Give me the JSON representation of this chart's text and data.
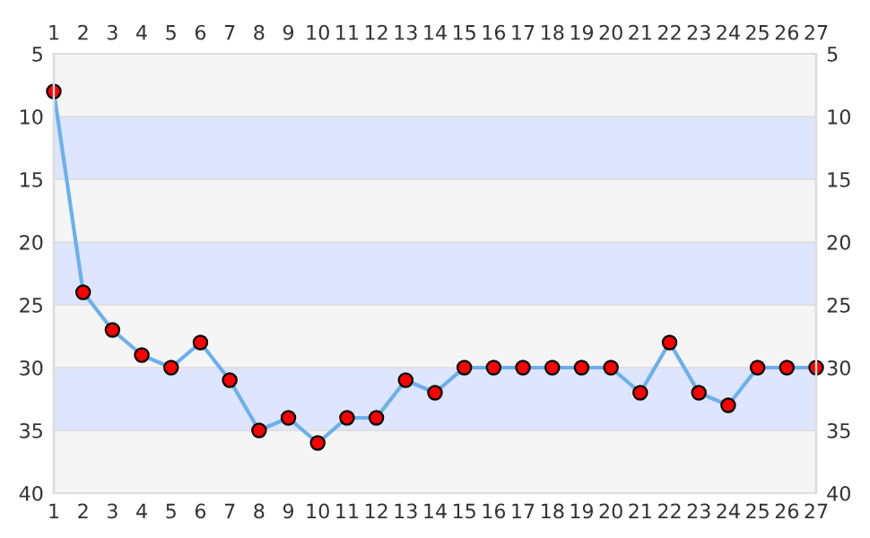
{
  "chart_data": {
    "type": "line",
    "x": [
      1,
      2,
      3,
      4,
      5,
      6,
      7,
      8,
      9,
      10,
      11,
      12,
      13,
      14,
      15,
      16,
      17,
      18,
      19,
      20,
      21,
      22,
      23,
      24,
      25,
      26,
      27
    ],
    "series": [
      {
        "color": "#6ab0f0",
        "colors": [
          "#ff0000",
          "#ff0000",
          "#ff0000",
          "#ff0000",
          "#ff0000",
          "#ff0000",
          "#ff0000",
          "#ff0000",
          "#ff0000",
          "#ff0000",
          "#ff0000",
          "#ff0000",
          "#ff0000",
          "#ff0000",
          "#ff0000",
          "#ff0000",
          "#ff0000",
          "#ff0000",
          "#ff0000",
          "#ff0000",
          "#ff0000",
          "#ff0000",
          "#ff0000",
          "#ff0000",
          "#ff0000",
          "#ff0000",
          "#ff0000"
        ],
        "values": [
          8,
          24,
          27,
          29,
          30,
          28,
          31,
          35,
          34,
          36,
          34,
          34,
          31,
          32,
          30,
          30,
          30,
          30,
          30,
          30,
          32,
          28,
          32,
          33,
          30,
          30,
          30
        ]
      }
    ],
    "marker": "circle",
    "line_style": "solid",
    "xlim": [
      1,
      27
    ],
    "xticks": [
      1,
      2,
      3,
      4,
      5,
      6,
      7,
      8,
      9,
      10,
      11,
      12,
      13,
      14,
      15,
      16,
      17,
      18,
      19,
      20,
      21,
      22,
      23,
      24,
      25,
      26,
      27
    ],
    "x2lim": [
      1,
      27
    ],
    "x2ticks": [
      1,
      2,
      3,
      4,
      5,
      6,
      7,
      8,
      9,
      10,
      11,
      12,
      13,
      14,
      15,
      16,
      17,
      18,
      19,
      20,
      21,
      22,
      23,
      24,
      25,
      26,
      27
    ],
    "ylim": [
      40,
      5
    ],
    "yticks": [
      5,
      10,
      15,
      20,
      25,
      30,
      35,
      40
    ],
    "y2lim": [
      40,
      5
    ],
    "y2ticks": [
      5,
      10,
      15,
      20,
      25,
      30,
      35,
      40
    ],
    "bands": [
      {
        "axis": "y",
        "from": 10,
        "to": 15,
        "color": "#dde5ff"
      },
      {
        "axis": "y",
        "from": 20,
        "to": 25,
        "color": "#dde5ff"
      },
      {
        "axis": "y",
        "from": 30,
        "to": 35,
        "color": "#dde5ff"
      }
    ],
    "grid": "y"
  }
}
